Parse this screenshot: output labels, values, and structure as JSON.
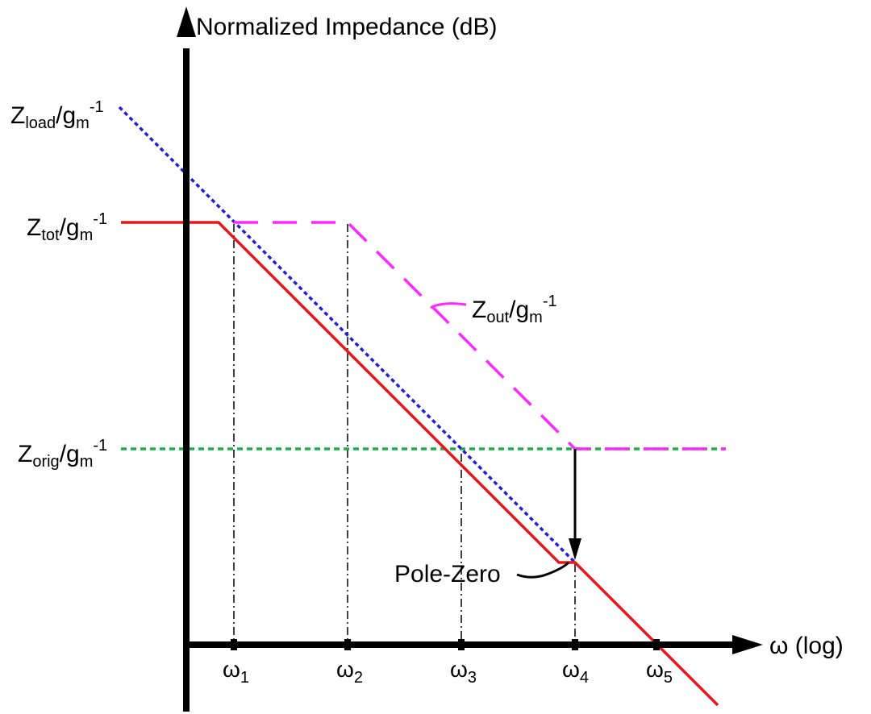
{
  "title": "Normalized Impedance (dB)",
  "x_axis_label": "ω (log)",
  "colors": {
    "axis": "#000000",
    "z_tot": "#e8151b",
    "z_load": "#1f1fdc",
    "z_out": "#ff27ff",
    "z_orig": "#1bb24a",
    "guide": "#000000"
  },
  "y_labels": {
    "z_load": {
      "base": "Z",
      "sub": "load",
      "mid": "/g",
      "mid_sub": "m",
      "sup": "-1"
    },
    "z_tot": {
      "base": "Z",
      "sub": "tot",
      "mid": "/g",
      "mid_sub": "m",
      "sup": "-1"
    },
    "z_orig": {
      "base": "Z",
      "sub": "orig",
      "mid": "/g",
      "mid_sub": "m",
      "sup": "-1"
    }
  },
  "z_out_label": {
    "base": "Z",
    "sub": "out",
    "mid": "/g",
    "mid_sub": "m",
    "sup": "-1"
  },
  "pole_zero_label": "Pole-Zero",
  "omega_ticks": [
    {
      "base": "ω",
      "sub": "1"
    },
    {
      "base": "ω",
      "sub": "2"
    },
    {
      "base": "ω",
      "sub": "3"
    },
    {
      "base": "ω",
      "sub": "4"
    },
    {
      "base": "ω",
      "sub": "5"
    }
  ],
  "icons": [
    "up-arrow-icon",
    "right-arrow-icon",
    "down-arrow-icon"
  ]
}
